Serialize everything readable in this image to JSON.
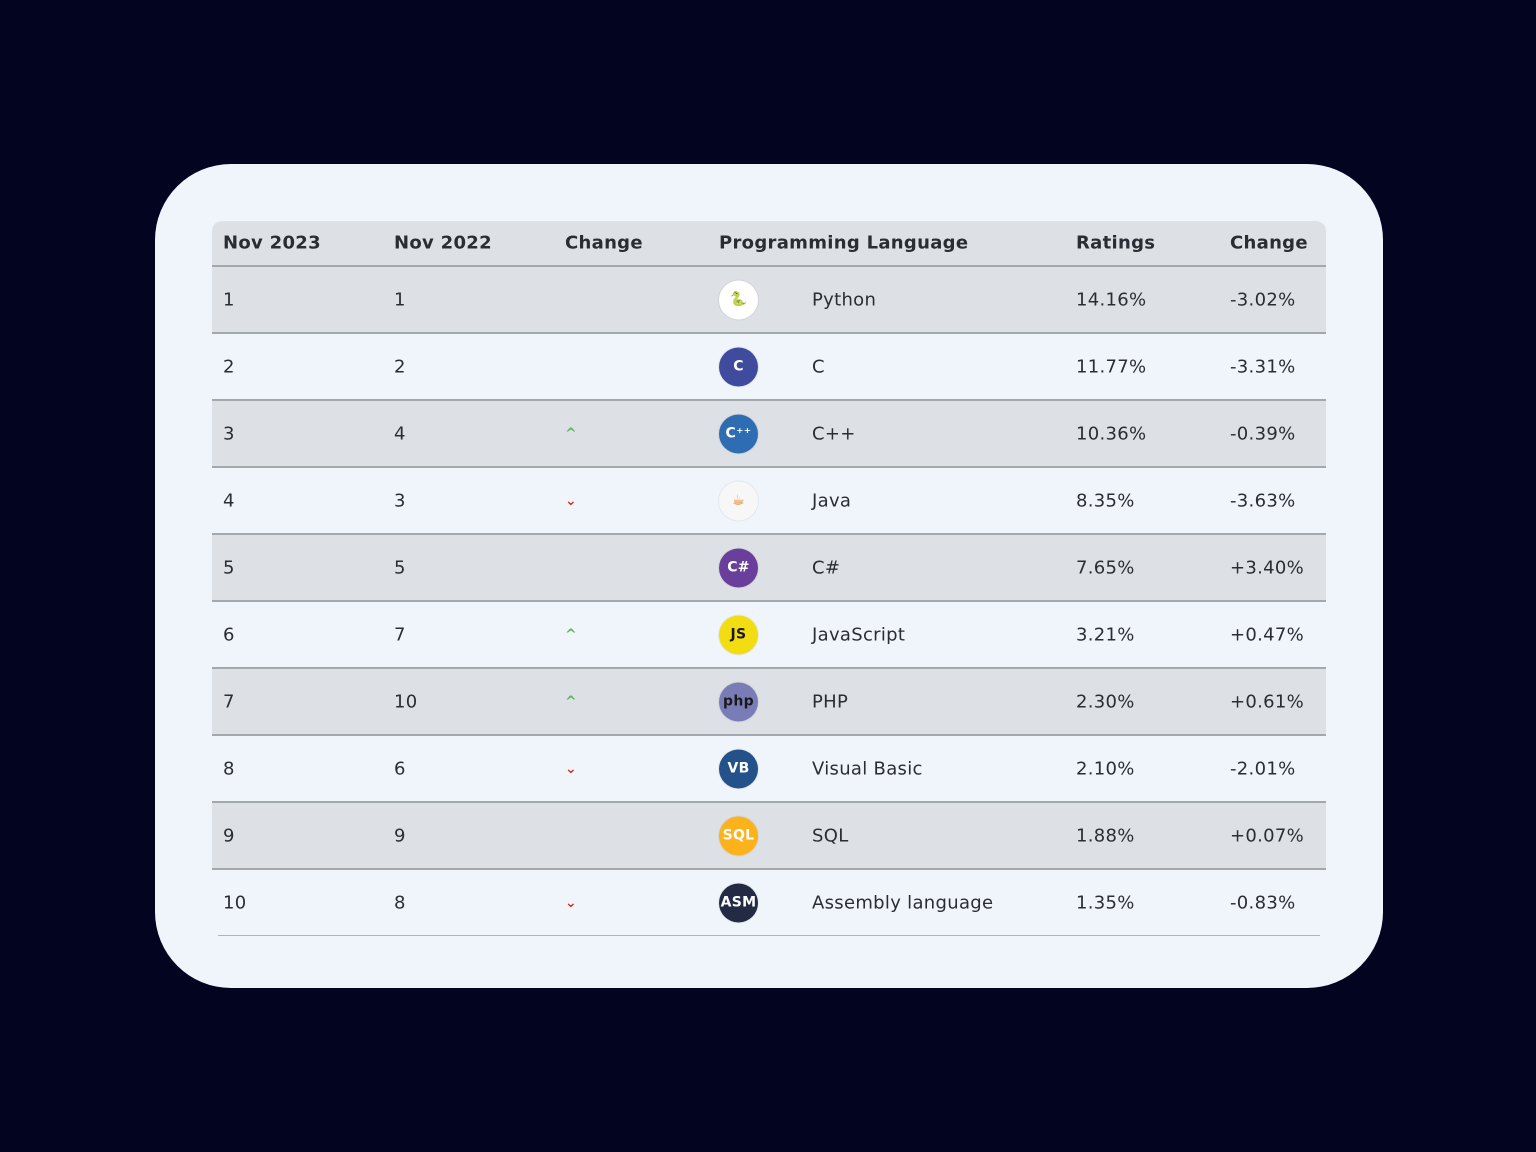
{
  "headers": [
    "Nov 2023",
    "Nov 2022",
    "Change",
    "Programming Language",
    "Ratings",
    "Change"
  ],
  "colors": {
    "up": "#5cb85c",
    "down": "#e0301e"
  },
  "rows": [
    {
      "rank_2023": "1",
      "rank_2022": "1",
      "trend": "",
      "trend_icon": "",
      "icon": "python-logo-icon",
      "icon_label": "🐍",
      "icon_bg": "#ffffff",
      "icon_fg": "#3b73a8",
      "language": "Python",
      "rating": "14.16%",
      "change": "-3.02%"
    },
    {
      "rank_2023": "2",
      "rank_2022": "2",
      "trend": "",
      "trend_icon": "",
      "icon": "c-logo-icon",
      "icon_label": "C",
      "icon_bg": "#3f4c9e",
      "icon_fg": "#ffffff",
      "language": "C",
      "rating": "11.77%",
      "change": "-3.31%"
    },
    {
      "rank_2023": "3",
      "rank_2022": "4",
      "trend": "up",
      "trend_icon": "^",
      "icon": "cpp-logo-icon",
      "icon_label": "C⁺⁺",
      "icon_bg": "#2f6db3",
      "icon_fg": "#ffffff",
      "language": "C++",
      "rating": "10.36%",
      "change": "-0.39%"
    },
    {
      "rank_2023": "4",
      "rank_2022": "3",
      "trend": "down",
      "trend_icon": "⌄",
      "icon": "java-logo-icon",
      "icon_label": "☕",
      "icon_bg": "#f7f7f7",
      "icon_fg": "#e76f00",
      "language": "Java",
      "rating": "8.35%",
      "change": "-3.63%"
    },
    {
      "rank_2023": "5",
      "rank_2022": "5",
      "trend": "",
      "trend_icon": "",
      "icon": "csharp-logo-icon",
      "icon_label": "C#",
      "icon_bg": "#6a3f9b",
      "icon_fg": "#ffffff",
      "language": "C#",
      "rating": "7.65%",
      "change": "+3.40%"
    },
    {
      "rank_2023": "6",
      "rank_2022": "7",
      "trend": "up",
      "trend_icon": "^",
      "icon": "javascript-logo-icon",
      "icon_label": "JS",
      "icon_bg": "#f2dc12",
      "icon_fg": "#1a1a1a",
      "language": "JavaScript",
      "rating": "3.21%",
      "change": "+0.47%"
    },
    {
      "rank_2023": "7",
      "rank_2022": "10",
      "trend": "up",
      "trend_icon": "^",
      "icon": "php-logo-icon",
      "icon_label": "php",
      "icon_bg": "#7a7cb8",
      "icon_fg": "#1a1a1a",
      "language": "PHP",
      "rating": "2.30%",
      "change": "+0.61%"
    },
    {
      "rank_2023": "8",
      "rank_2022": "6",
      "trend": "down",
      "trend_icon": "⌄",
      "icon": "visual-basic-logo-icon",
      "icon_label": "VB",
      "icon_bg": "#245189",
      "icon_fg": "#ffffff",
      "language": "Visual Basic",
      "rating": "2.10%",
      "change": "-2.01%"
    },
    {
      "rank_2023": "9",
      "rank_2022": "9",
      "trend": "",
      "trend_icon": "",
      "icon": "sql-logo-icon",
      "icon_label": "SQL",
      "icon_bg": "#fbb21b",
      "icon_fg": "#ffffff",
      "language": "SQL",
      "rating": "1.88%",
      "change": "+0.07%"
    },
    {
      "rank_2023": "10",
      "rank_2022": "8",
      "trend": "down",
      "trend_icon": "⌄",
      "icon": "assembly-logo-icon",
      "icon_label": "ASM",
      "icon_bg": "#232b44",
      "icon_fg": "#ffffff",
      "language": "Assembly language",
      "rating": "1.35%",
      "change": "-0.83%"
    }
  ]
}
